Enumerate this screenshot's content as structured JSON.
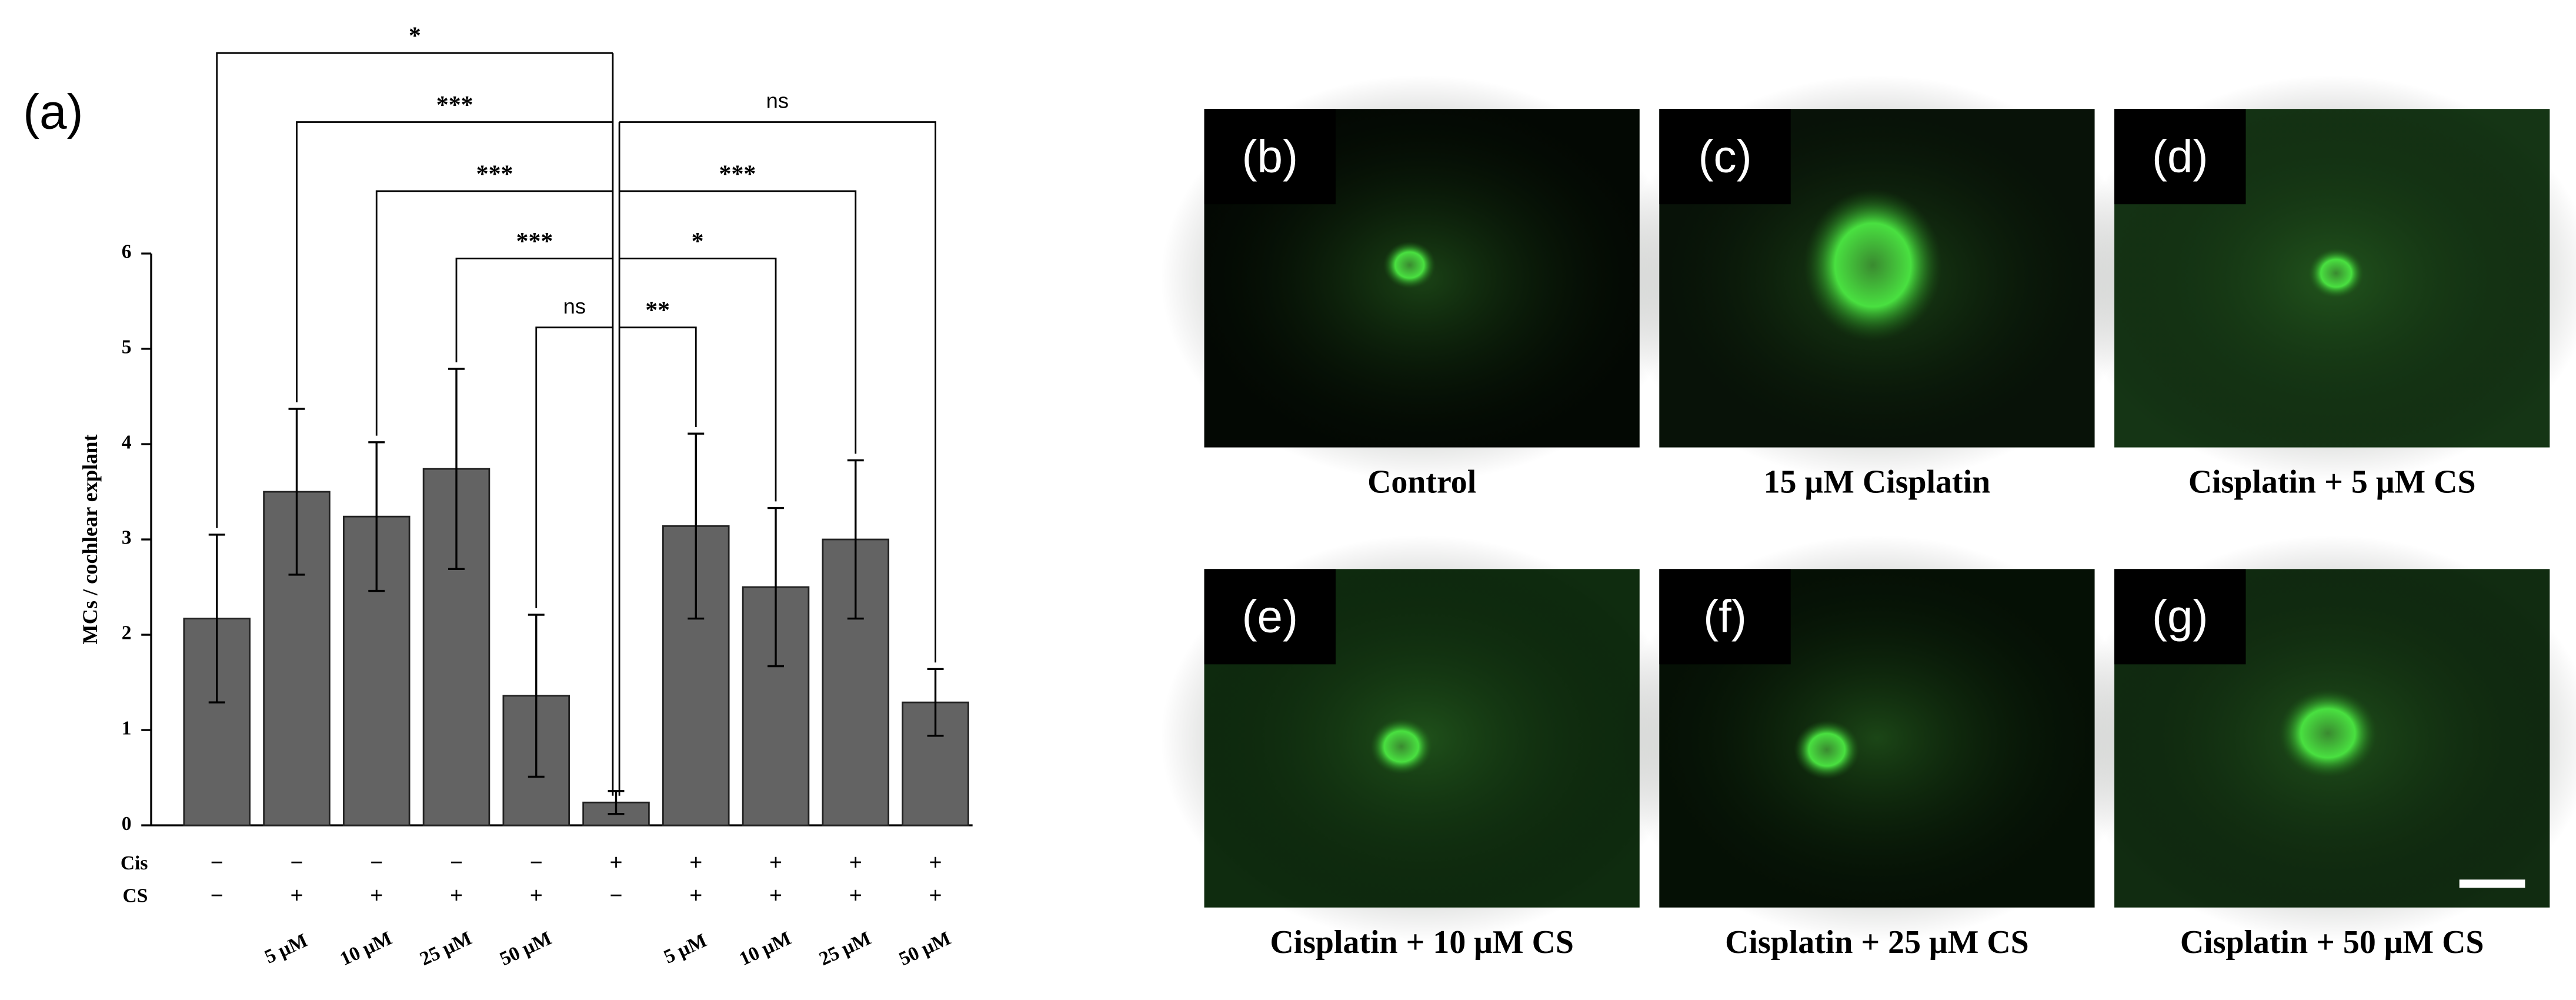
{
  "chart_data": {
    "type": "bar",
    "panel_label": "(a)",
    "y_label": "MCs / cochlear explant",
    "categories": [
      null,
      "5 μM",
      "10 μM",
      "25 μM",
      "50 μM",
      null,
      "5 μM",
      "10 μM",
      "25 μM",
      "50 μM"
    ],
    "values": [
      2.17,
      3.5,
      3.24,
      3.74,
      1.36,
      0.24,
      3.14,
      2.5,
      3.0,
      1.29
    ],
    "errors": [
      0.88,
      0.87,
      0.78,
      1.05,
      0.85,
      0.12,
      0.97,
      0.83,
      0.83,
      0.35
    ],
    "color": "#636363",
    "ylim": [
      0,
      6
    ],
    "yticks": [
      0,
      1,
      2,
      3,
      4,
      5,
      6
    ],
    "treatment_rows": [
      {
        "name": "Cis",
        "marks": [
          "−",
          "−",
          "−",
          "−",
          "−",
          "+",
          "+",
          "+",
          "+",
          "+"
        ]
      },
      {
        "name": "CS",
        "marks": [
          "−",
          "+",
          "+",
          "+",
          "+",
          "−",
          "+",
          "+",
          "+",
          "+"
        ]
      }
    ],
    "significance": [
      "*",
      "***",
      "ns",
      "***",
      "***",
      "***",
      "*",
      "ns",
      "**"
    ]
  },
  "images": [
    {
      "label": "(b)",
      "caption": "Control"
    },
    {
      "label": "(c)",
      "caption": "15 μM Cisplatin"
    },
    {
      "label": "(d)",
      "caption": "Cisplatin + 5 μM CS"
    },
    {
      "label": "(e)",
      "caption": "Cisplatin + 10 μM CS"
    },
    {
      "label": "(f)",
      "caption": "Cisplatin + 25 μM CS"
    },
    {
      "label": "(g)",
      "caption": "Cisplatin + 50 μM CS"
    }
  ]
}
